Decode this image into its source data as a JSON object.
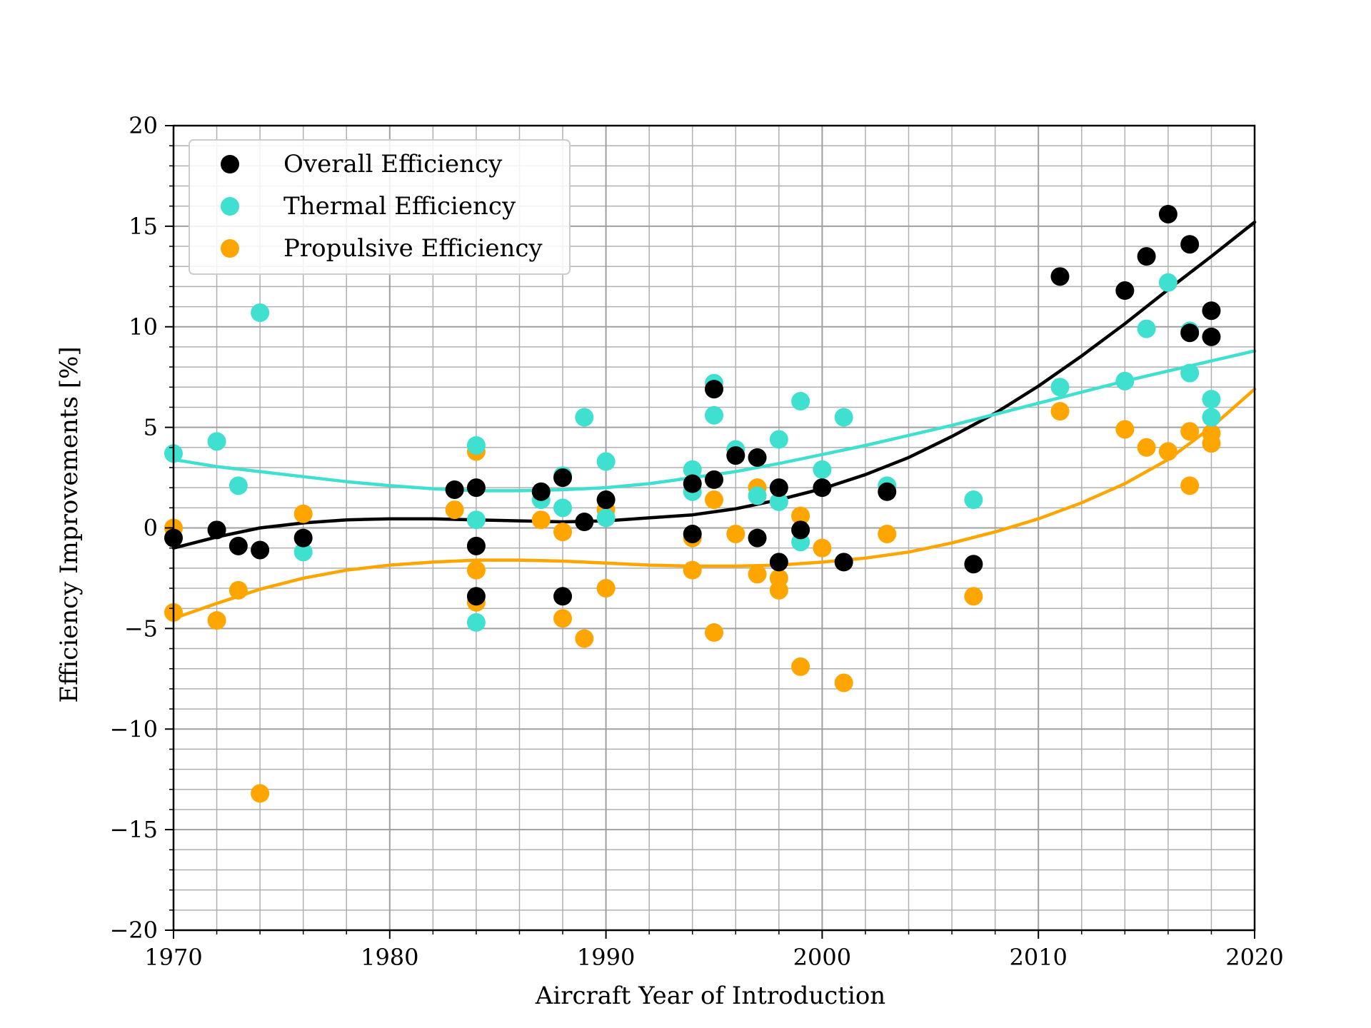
{
  "chart_data": {
    "type": "scatter",
    "title": "",
    "xlabel": "Aircraft Year of Introduction",
    "ylabel": "Efficiency Improvements [%]",
    "xlim": [
      1970,
      2020
    ],
    "ylim": [
      -20,
      20
    ],
    "x_ticks": [
      1970,
      1980,
      1990,
      2000,
      2010,
      2020
    ],
    "y_ticks": [
      -20,
      -15,
      -10,
      -5,
      0,
      5,
      10,
      15,
      20
    ],
    "y_tick_labels": [
      "−20",
      "−15",
      "−10",
      "−5",
      "0",
      "5",
      "10",
      "15",
      "20"
    ],
    "grid": true,
    "minor_grid": true,
    "legend_position": "top-left",
    "series": [
      {
        "name": "Overall Efficiency",
        "color": "#000000",
        "points": [
          [
            1970,
            -0.5
          ],
          [
            1972,
            -0.1
          ],
          [
            1973,
            -0.9
          ],
          [
            1974,
            -1.1
          ],
          [
            1976,
            -0.5
          ],
          [
            1983,
            1.9
          ],
          [
            1984,
            2.0
          ],
          [
            1984,
            -0.9
          ],
          [
            1984,
            -3.4
          ],
          [
            1987,
            1.8
          ],
          [
            1988,
            2.5
          ],
          [
            1988,
            -3.4
          ],
          [
            1989,
            0.3
          ],
          [
            1990,
            1.4
          ],
          [
            1994,
            -0.3
          ],
          [
            1994,
            2.2
          ],
          [
            1995,
            6.9
          ],
          [
            1995,
            2.4
          ],
          [
            1996,
            3.6
          ],
          [
            1997,
            3.5
          ],
          [
            1997,
            -0.5
          ],
          [
            1998,
            2.0
          ],
          [
            1998,
            -1.7
          ],
          [
            1999,
            -0.1
          ],
          [
            2000,
            2.0
          ],
          [
            2001,
            -1.7
          ],
          [
            2003,
            1.8
          ],
          [
            2007,
            -1.8
          ],
          [
            2011,
            12.5
          ],
          [
            2014,
            11.8
          ],
          [
            2015,
            13.5
          ],
          [
            2016,
            15.6
          ],
          [
            2017,
            14.1
          ],
          [
            2017,
            9.7
          ],
          [
            2018,
            10.8
          ],
          [
            2018,
            9.5
          ]
        ],
        "trend": [
          [
            1970,
            -1.0
          ],
          [
            1972,
            -0.45
          ],
          [
            1974,
            0.0
          ],
          [
            1976,
            0.25
          ],
          [
            1978,
            0.4
          ],
          [
            1980,
            0.45
          ],
          [
            1982,
            0.45
          ],
          [
            1984,
            0.4
          ],
          [
            1986,
            0.35
          ],
          [
            1988,
            0.3
          ],
          [
            1990,
            0.35
          ],
          [
            1992,
            0.5
          ],
          [
            1994,
            0.65
          ],
          [
            1996,
            0.95
          ],
          [
            1998,
            1.4
          ],
          [
            2000,
            1.95
          ],
          [
            2002,
            2.65
          ],
          [
            2004,
            3.5
          ],
          [
            2006,
            4.55
          ],
          [
            2008,
            5.7
          ],
          [
            2010,
            7.05
          ],
          [
            2012,
            8.55
          ],
          [
            2014,
            10.15
          ],
          [
            2016,
            11.85
          ],
          [
            2018,
            13.5
          ],
          [
            2020,
            15.2
          ]
        ]
      },
      {
        "name": "Thermal Efficiency",
        "color": "#40e0d0",
        "points": [
          [
            1970,
            3.7
          ],
          [
            1972,
            4.3
          ],
          [
            1973,
            2.1
          ],
          [
            1974,
            10.7
          ],
          [
            1976,
            -1.2
          ],
          [
            1984,
            4.1
          ],
          [
            1984,
            0.4
          ],
          [
            1984,
            -4.7
          ],
          [
            1987,
            1.4
          ],
          [
            1988,
            2.6
          ],
          [
            1988,
            1.0
          ],
          [
            1989,
            5.5
          ],
          [
            1990,
            3.3
          ],
          [
            1990,
            0.5
          ],
          [
            1994,
            2.9
          ],
          [
            1994,
            1.8
          ],
          [
            1995,
            7.2
          ],
          [
            1995,
            5.6
          ],
          [
            1996,
            3.9
          ],
          [
            1997,
            1.6
          ],
          [
            1998,
            4.4
          ],
          [
            1998,
            1.3
          ],
          [
            1999,
            6.3
          ],
          [
            1999,
            -0.7
          ],
          [
            2000,
            2.9
          ],
          [
            2001,
            5.5
          ],
          [
            2003,
            2.1
          ],
          [
            2007,
            1.4
          ],
          [
            2011,
            7.0
          ],
          [
            2014,
            7.3
          ],
          [
            2015,
            9.9
          ],
          [
            2016,
            12.2
          ],
          [
            2017,
            9.8
          ],
          [
            2017,
            7.7
          ],
          [
            2018,
            6.4
          ],
          [
            2018,
            5.5
          ]
        ],
        "trend": [
          [
            1970,
            3.4
          ],
          [
            1972,
            3.05
          ],
          [
            1974,
            2.8
          ],
          [
            1976,
            2.55
          ],
          [
            1978,
            2.3
          ],
          [
            1980,
            2.1
          ],
          [
            1982,
            1.95
          ],
          [
            1984,
            1.85
          ],
          [
            1986,
            1.85
          ],
          [
            1988,
            1.9
          ],
          [
            1990,
            2.0
          ],
          [
            1992,
            2.2
          ],
          [
            1994,
            2.5
          ],
          [
            1996,
            2.8
          ],
          [
            1998,
            3.2
          ],
          [
            2000,
            3.65
          ],
          [
            2002,
            4.1
          ],
          [
            2004,
            4.6
          ],
          [
            2006,
            5.1
          ],
          [
            2008,
            5.65
          ],
          [
            2010,
            6.2
          ],
          [
            2012,
            6.75
          ],
          [
            2014,
            7.3
          ],
          [
            2016,
            7.8
          ],
          [
            2018,
            8.3
          ],
          [
            2020,
            8.8
          ]
        ]
      },
      {
        "name": "Propulsive Efficiency",
        "color": "#ffa500",
        "points": [
          [
            1970,
            0.0
          ],
          [
            1970,
            -4.2
          ],
          [
            1972,
            -4.6
          ],
          [
            1973,
            -3.1
          ],
          [
            1974,
            -13.2
          ],
          [
            1976,
            0.7
          ],
          [
            1983,
            0.9
          ],
          [
            1984,
            3.8
          ],
          [
            1984,
            -2.1
          ],
          [
            1984,
            -3.7
          ],
          [
            1987,
            0.4
          ],
          [
            1988,
            -0.2
          ],
          [
            1988,
            -4.5
          ],
          [
            1989,
            -5.5
          ],
          [
            1990,
            0.9
          ],
          [
            1990,
            -3.0
          ],
          [
            1994,
            -0.5
          ],
          [
            1994,
            -2.1
          ],
          [
            1995,
            1.4
          ],
          [
            1995,
            -5.2
          ],
          [
            1996,
            -0.3
          ],
          [
            1997,
            2.0
          ],
          [
            1997,
            -2.3
          ],
          [
            1998,
            -2.5
          ],
          [
            1998,
            -3.1
          ],
          [
            1999,
            0.6
          ],
          [
            1999,
            -6.9
          ],
          [
            2000,
            -1.0
          ],
          [
            2001,
            -7.7
          ],
          [
            2003,
            -0.3
          ],
          [
            2007,
            -3.4
          ],
          [
            2011,
            5.8
          ],
          [
            2014,
            4.9
          ],
          [
            2015,
            4.0
          ],
          [
            2016,
            3.8
          ],
          [
            2017,
            4.8
          ],
          [
            2017,
            2.1
          ],
          [
            2018,
            4.7
          ],
          [
            2018,
            4.2
          ]
        ],
        "trend": [
          [
            1970,
            -4.5
          ],
          [
            1972,
            -3.75
          ],
          [
            1974,
            -3.05
          ],
          [
            1976,
            -2.5
          ],
          [
            1978,
            -2.1
          ],
          [
            1980,
            -1.85
          ],
          [
            1982,
            -1.7
          ],
          [
            1984,
            -1.6
          ],
          [
            1986,
            -1.6
          ],
          [
            1988,
            -1.65
          ],
          [
            1990,
            -1.75
          ],
          [
            1992,
            -1.85
          ],
          [
            1994,
            -1.9
          ],
          [
            1996,
            -1.9
          ],
          [
            1998,
            -1.85
          ],
          [
            2000,
            -1.7
          ],
          [
            2002,
            -1.5
          ],
          [
            2004,
            -1.2
          ],
          [
            2006,
            -0.75
          ],
          [
            2008,
            -0.2
          ],
          [
            2010,
            0.45
          ],
          [
            2012,
            1.25
          ],
          [
            2014,
            2.2
          ],
          [
            2016,
            3.4
          ],
          [
            2018,
            5.0
          ],
          [
            2020,
            6.9
          ]
        ]
      }
    ]
  }
}
